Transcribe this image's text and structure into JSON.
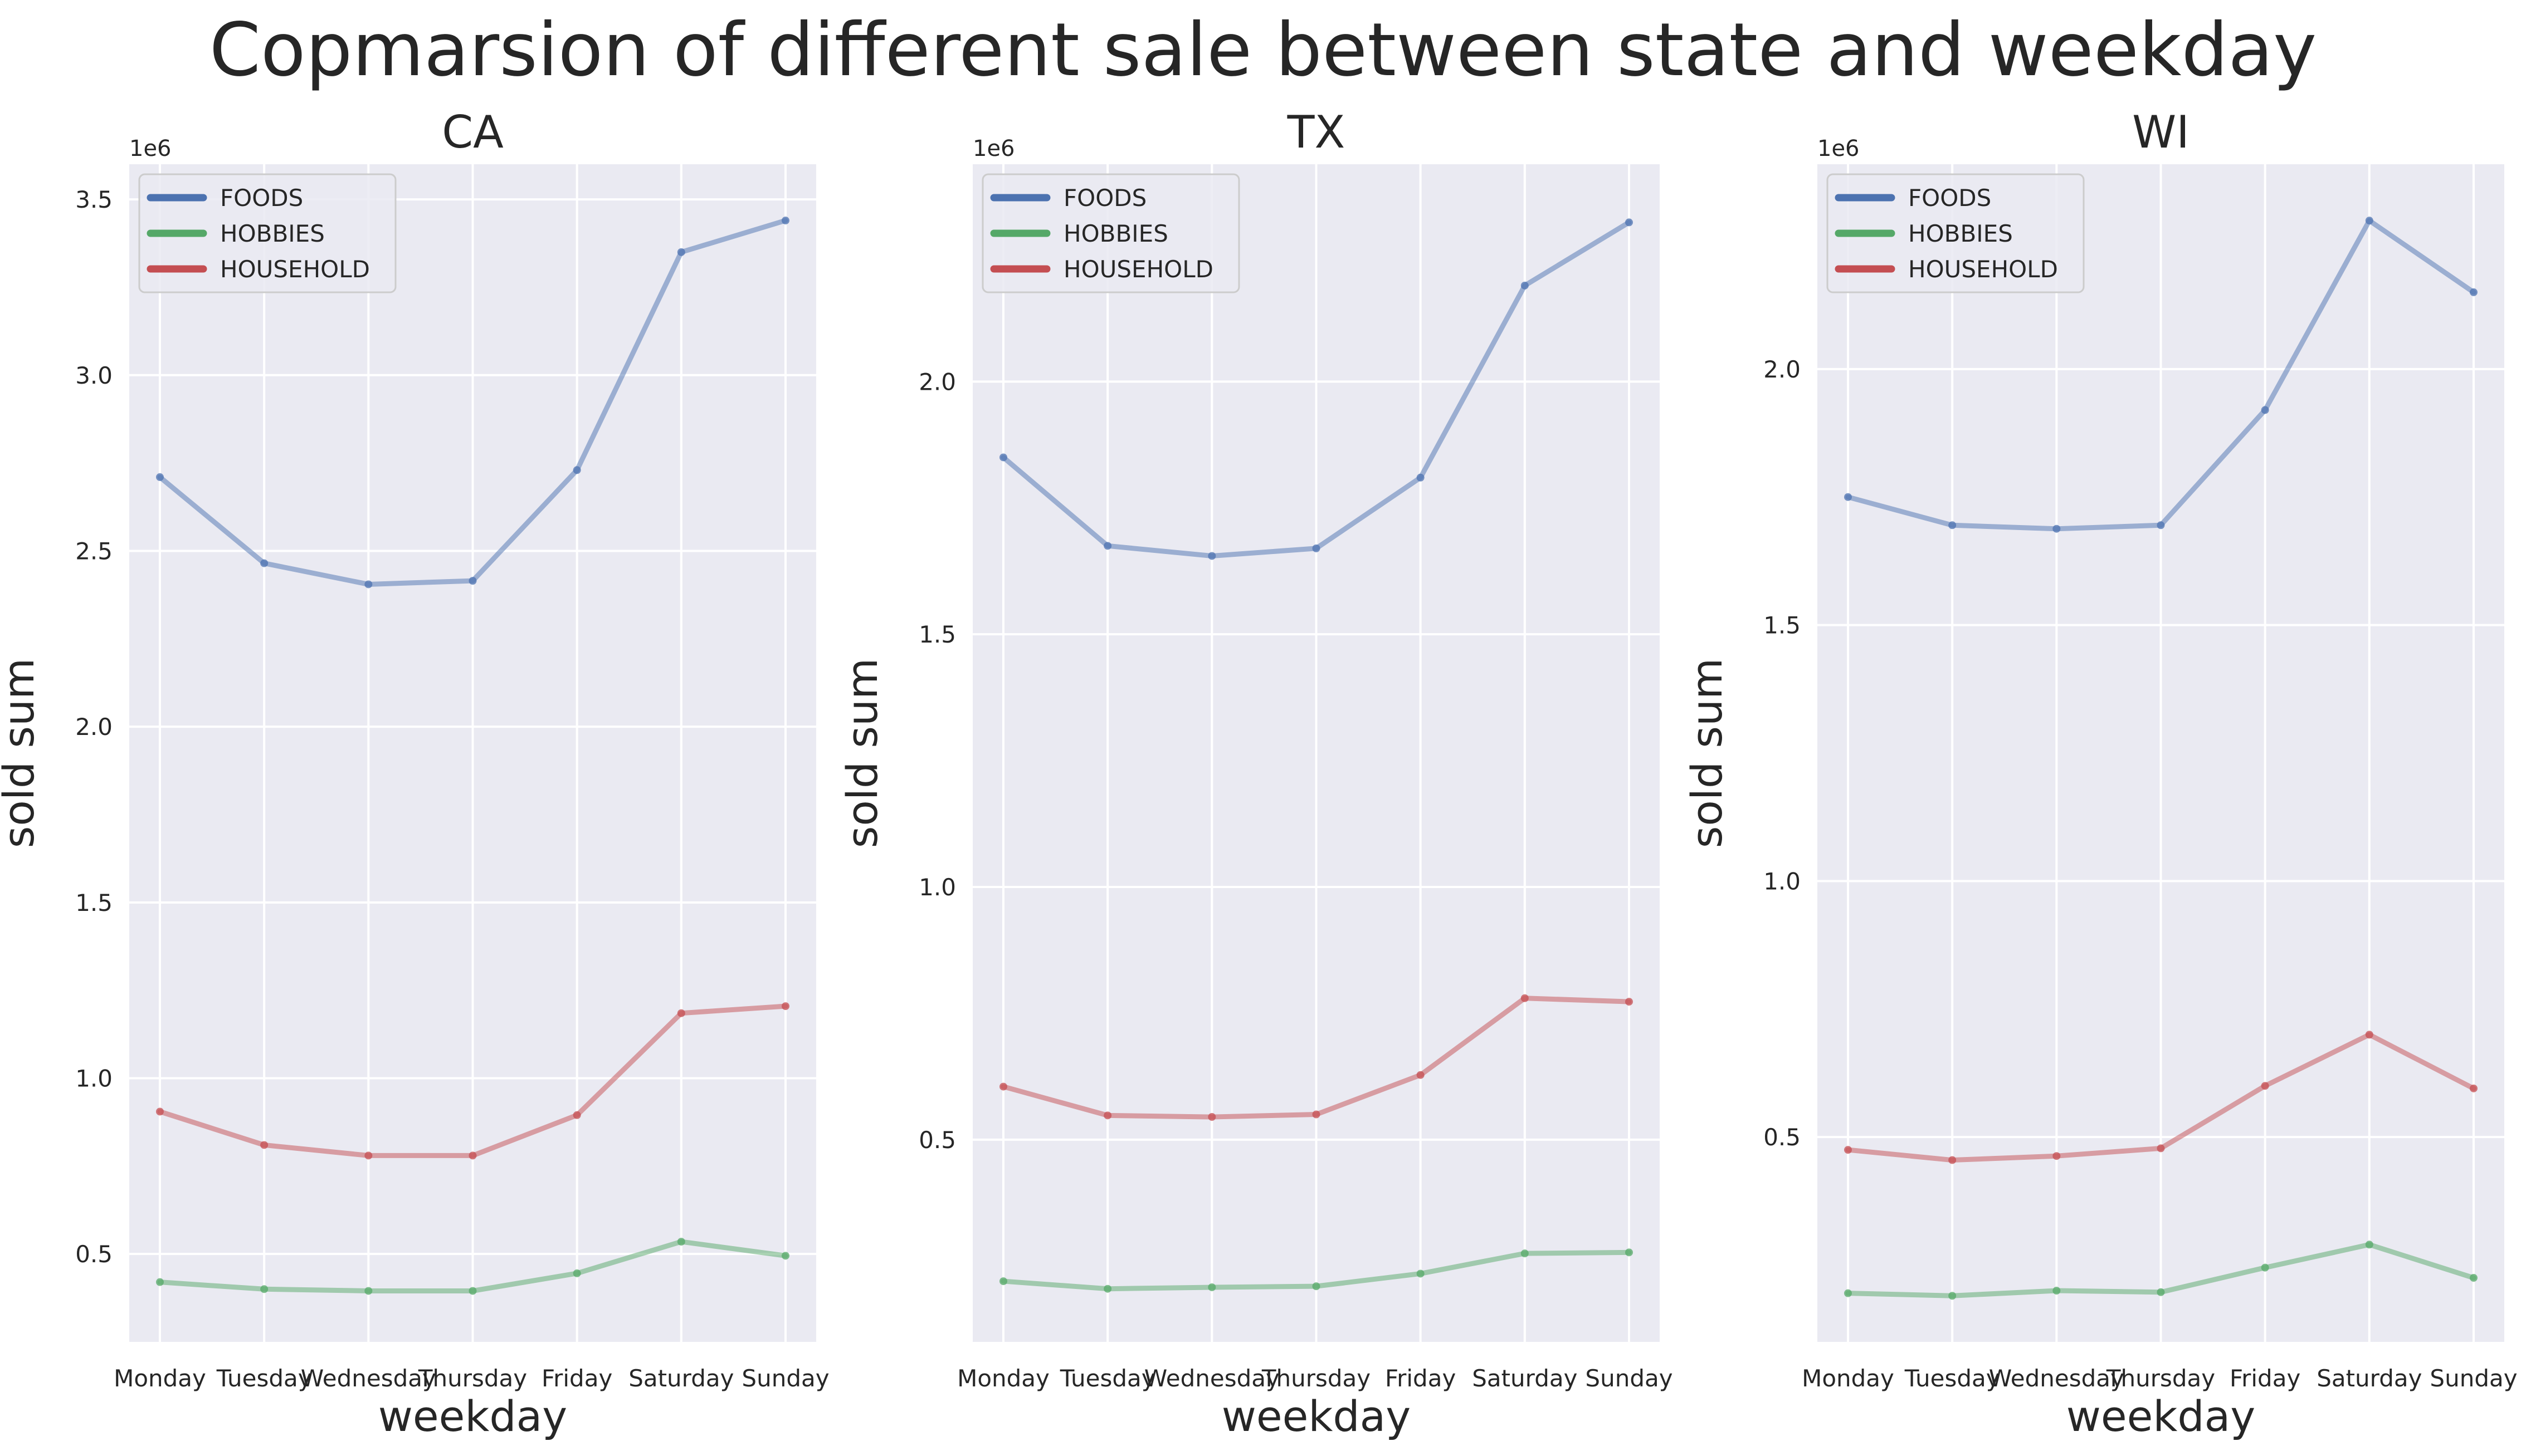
{
  "figure_title": "Copmarsion of different sale between state and weekday",
  "chart_data": [
    {
      "type": "line",
      "title": "CA",
      "xlabel": "weekday",
      "ylabel": "sold sum",
      "y_offset_label": "1e6",
      "categories": [
        "Monday",
        "Tuesday",
        "Wednesday",
        "Thursday",
        "Friday",
        "Saturday",
        "Sunday"
      ],
      "ylim": [
        0.25,
        3.6
      ],
      "yticks": [
        0.5,
        1.0,
        1.5,
        2.0,
        2.5,
        3.0,
        3.5
      ],
      "ytick_labels": [
        "0.5",
        "1.0",
        "1.5",
        "2.0",
        "2.5",
        "3.0",
        "3.5"
      ],
      "grid": true,
      "legend": "upper-left",
      "series": [
        {
          "name": "FOODS",
          "color": "#4c72b0",
          "values": [
            2.71,
            2.465,
            2.405,
            2.415,
            2.73,
            3.35,
            3.44
          ]
        },
        {
          "name": "HOBBIES",
          "color": "#55a868",
          "values": [
            0.42,
            0.4,
            0.395,
            0.395,
            0.445,
            0.535,
            0.495
          ]
        },
        {
          "name": "HOUSEHOLD",
          "color": "#c44e52",
          "values": [
            0.905,
            0.81,
            0.78,
            0.78,
            0.895,
            1.185,
            1.205
          ]
        }
      ]
    },
    {
      "type": "line",
      "title": "TX",
      "xlabel": "weekday",
      "ylabel": "sold sum",
      "y_offset_label": "1e6",
      "categories": [
        "Monday",
        "Tuesday",
        "Wednesday",
        "Thursday",
        "Friday",
        "Saturday",
        "Sunday"
      ],
      "ylim": [
        0.1,
        2.43
      ],
      "yticks": [
        0.5,
        1.0,
        1.5,
        2.0
      ],
      "ytick_labels": [
        "0.5",
        "1.0",
        "1.5",
        "2.0"
      ],
      "grid": true,
      "legend": "upper-left",
      "series": [
        {
          "name": "FOODS",
          "color": "#4c72b0",
          "values": [
            1.85,
            1.675,
            1.655,
            1.67,
            1.81,
            2.19,
            2.315
          ]
        },
        {
          "name": "HOBBIES",
          "color": "#55a868",
          "values": [
            0.22,
            0.205,
            0.208,
            0.21,
            0.235,
            0.275,
            0.277
          ]
        },
        {
          "name": "HOUSEHOLD",
          "color": "#c44e52",
          "values": [
            0.605,
            0.548,
            0.545,
            0.55,
            0.628,
            0.78,
            0.773
          ]
        }
      ]
    },
    {
      "type": "line",
      "title": "WI",
      "xlabel": "weekday",
      "ylabel": "sold sum",
      "y_offset_label": "1e6",
      "categories": [
        "Monday",
        "Tuesday",
        "Wednesday",
        "Thursday",
        "Friday",
        "Saturday",
        "Sunday"
      ],
      "ylim": [
        0.1,
        2.4
      ],
      "yticks": [
        0.5,
        1.0,
        1.5,
        2.0
      ],
      "ytick_labels": [
        "0.5",
        "1.0",
        "1.5",
        "2.0"
      ],
      "grid": true,
      "legend": "upper-left",
      "series": [
        {
          "name": "FOODS",
          "color": "#4c72b0",
          "values": [
            1.75,
            1.695,
            1.688,
            1.695,
            1.92,
            2.29,
            2.15
          ]
        },
        {
          "name": "HOBBIES",
          "color": "#55a868",
          "values": [
            0.195,
            0.19,
            0.2,
            0.197,
            0.245,
            0.29,
            0.225
          ]
        },
        {
          "name": "HOUSEHOLD",
          "color": "#c44e52",
          "values": [
            0.475,
            0.455,
            0.463,
            0.478,
            0.6,
            0.7,
            0.595
          ]
        }
      ]
    }
  ]
}
